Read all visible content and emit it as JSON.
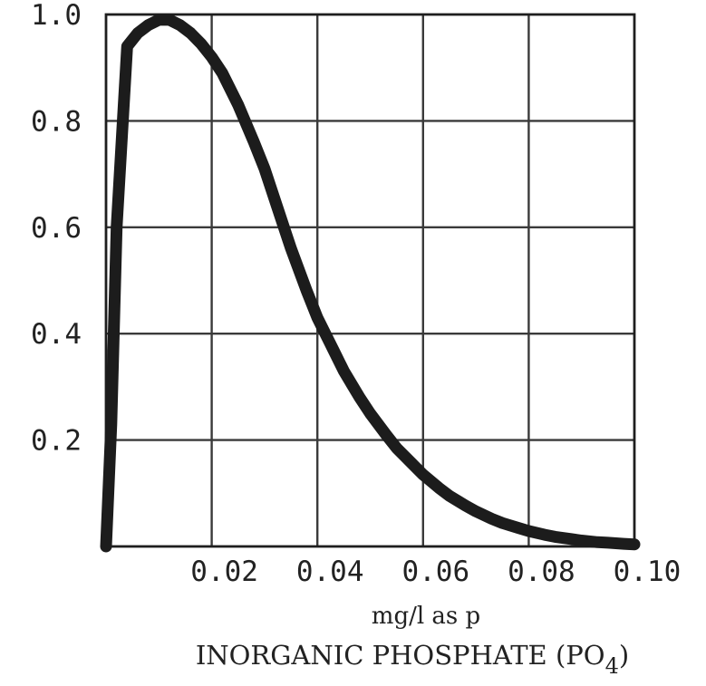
{
  "chart_data": {
    "type": "line",
    "title": "",
    "xlabel_units": "mg/l as p",
    "xlabel": "INORGANIC PHOSPHATE (PO",
    "xlabel_subscript": "4",
    "xlabel_close": ")",
    "ylabel": "",
    "xlim": [
      0,
      0.1
    ],
    "ylim": [
      0,
      1.0
    ],
    "grid": true,
    "x_ticks": [
      {
        "value": 0.02,
        "label": "0.02"
      },
      {
        "value": 0.04,
        "label": "0.04"
      },
      {
        "value": 0.06,
        "label": "0.06"
      },
      {
        "value": 0.08,
        "label": "0.08"
      },
      {
        "value": 0.1,
        "label": "0.10"
      }
    ],
    "y_ticks": [
      {
        "value": 0.2,
        "label": "0.2"
      },
      {
        "value": 0.4,
        "label": "0.4"
      },
      {
        "value": 0.6,
        "label": "0.6"
      },
      {
        "value": 0.8,
        "label": "0.8"
      },
      {
        "value": 1.0,
        "label": "1.0"
      }
    ],
    "series": [
      {
        "x": [
          0,
          0.001,
          0.002,
          0.004,
          0.006,
          0.008,
          0.01,
          0.012,
          0.014,
          0.016,
          0.018,
          0.02,
          0.022,
          0.025,
          0.028,
          0.03,
          0.033,
          0.035,
          0.038,
          0.04,
          0.043,
          0.045,
          0.048,
          0.05,
          0.053,
          0.055,
          0.058,
          0.06,
          0.063,
          0.065,
          0.068,
          0.07,
          0.073,
          0.075,
          0.078,
          0.08,
          0.083,
          0.085,
          0.088,
          0.09,
          0.093,
          0.095,
          0.098,
          0.1
        ],
        "y": [
          0,
          0.23,
          0.6,
          0.94,
          0.965,
          0.98,
          0.99,
          0.99,
          0.98,
          0.965,
          0.945,
          0.92,
          0.89,
          0.83,
          0.76,
          0.71,
          0.62,
          0.56,
          0.48,
          0.43,
          0.37,
          0.33,
          0.28,
          0.25,
          0.21,
          0.185,
          0.155,
          0.135,
          0.11,
          0.095,
          0.077,
          0.066,
          0.052,
          0.044,
          0.035,
          0.029,
          0.022,
          0.018,
          0.014,
          0.011,
          0.008,
          0.007,
          0.005,
          0.004
        ]
      }
    ]
  }
}
